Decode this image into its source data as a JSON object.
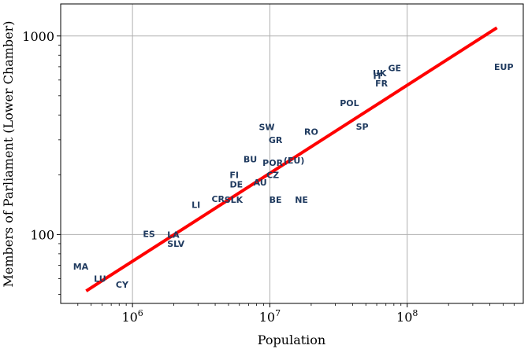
{
  "chart_data": {
    "type": "scatter",
    "title": "",
    "xlabel": "Population",
    "ylabel": "Members of Parliament (Lower Chamber)",
    "x_scale": "log",
    "y_scale": "log",
    "xlim": [
      300000,
      700000000
    ],
    "ylim": [
      45,
      1450
    ],
    "x_ticks": [
      {
        "value": 1000000,
        "base": "10",
        "exp": "6"
      },
      {
        "value": 10000000,
        "base": "10",
        "exp": "7"
      },
      {
        "value": 100000000,
        "base": "10",
        "exp": "8"
      }
    ],
    "y_ticks": [
      {
        "value": 100,
        "label": "100"
      },
      {
        "value": 1000,
        "label": "1000"
      }
    ],
    "grid": true,
    "fit_line": {
      "color": "#ff0000",
      "x": [
        460000,
        450000000
      ],
      "y": [
        52,
        1100
      ]
    },
    "points": [
      {
        "label": "MA",
        "x": 420000,
        "y": 69
      },
      {
        "label": "LU",
        "x": 580000,
        "y": 60
      },
      {
        "label": "CY",
        "x": 840000,
        "y": 56
      },
      {
        "label": "ES",
        "x": 1320000,
        "y": 101
      },
      {
        "label": "LA",
        "x": 1980000,
        "y": 100
      },
      {
        "label": "SLV",
        "x": 2070000,
        "y": 90
      },
      {
        "label": "LI",
        "x": 2900000,
        "y": 141
      },
      {
        "label": "CR",
        "x": 4200000,
        "y": 151
      },
      {
        "label": "SLK",
        "x": 5450000,
        "y": 150
      },
      {
        "label": "FI",
        "x": 5500000,
        "y": 200
      },
      {
        "label": "DE",
        "x": 5700000,
        "y": 179
      },
      {
        "label": "BU",
        "x": 7200000,
        "y": 240
      },
      {
        "label": "AU",
        "x": 8500000,
        "y": 183
      },
      {
        "label": "SW",
        "x": 9500000,
        "y": 349
      },
      {
        "label": "GR",
        "x": 11000000,
        "y": 300
      },
      {
        "label": "POR",
        "x": 10500000,
        "y": 230
      },
      {
        "label": "CZ",
        "x": 10500000,
        "y": 200
      },
      {
        "label": "BE",
        "x": 11000000,
        "y": 150
      },
      {
        "label": "(EU)",
        "x": 15000000,
        "y": 236
      },
      {
        "label": "NE",
        "x": 17000000,
        "y": 150
      },
      {
        "label": "RO",
        "x": 20000000,
        "y": 330
      },
      {
        "label": "POL",
        "x": 38000000,
        "y": 460
      },
      {
        "label": "SP",
        "x": 47000000,
        "y": 350
      },
      {
        "label": "IT",
        "x": 61000000,
        "y": 630
      },
      {
        "label": "UK",
        "x": 63000000,
        "y": 650
      },
      {
        "label": "FR",
        "x": 65000000,
        "y": 577
      },
      {
        "label": "GE",
        "x": 81000000,
        "y": 690
      },
      {
        "label": "EUP",
        "x": 505000000,
        "y": 700
      }
    ]
  }
}
